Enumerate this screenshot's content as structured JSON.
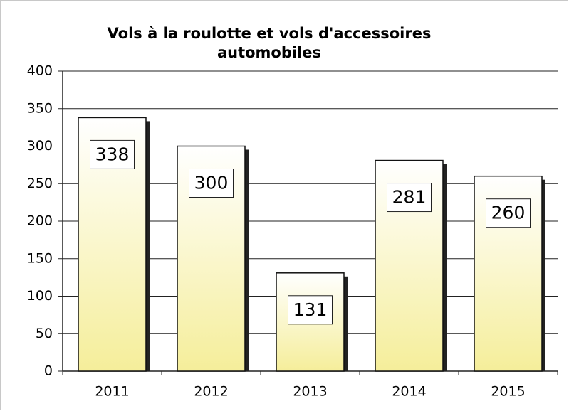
{
  "chart_data": {
    "type": "bar",
    "title": [
      "Vols à la roulotte et vols d'accessoires",
      "automobiles"
    ],
    "categories": [
      "2011",
      "2012",
      "2013",
      "2014",
      "2015"
    ],
    "values": [
      338,
      300,
      131,
      281,
      260
    ],
    "color": "#f5ee9a",
    "ylim": [
      0,
      400
    ],
    "yticks": [
      0,
      50,
      100,
      150,
      200,
      250,
      300,
      350,
      400
    ],
    "grid": true
  }
}
